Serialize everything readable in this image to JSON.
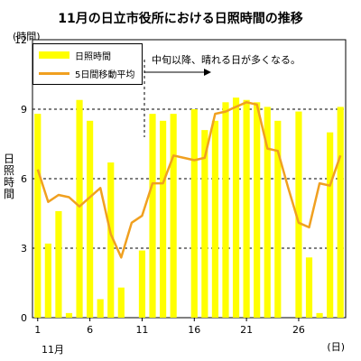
{
  "chart_data": {
    "type": "bar",
    "title": "11月の日立市役所における日照時間の推移",
    "y_unit": "(時間)",
    "x_unit": "(日)",
    "month_label": "11月",
    "ylabel": "日照時間",
    "ylim": [
      0,
      12
    ],
    "yticks": [
      0,
      3,
      6,
      9,
      12
    ],
    "xtick_labels": [
      "1",
      "6",
      "11",
      "16",
      "21",
      "26"
    ],
    "xtick_days": [
      1,
      6,
      11,
      16,
      21,
      26
    ],
    "x": [
      1,
      2,
      3,
      4,
      5,
      6,
      7,
      8,
      9,
      10,
      11,
      12,
      13,
      14,
      15,
      16,
      17,
      18,
      19,
      20,
      21,
      22,
      23,
      24,
      25,
      26,
      27,
      28,
      29,
      30
    ],
    "series": [
      {
        "name": "日照時間",
        "type": "bar",
        "color": "#ffff00",
        "values": [
          8.8,
          3.2,
          4.6,
          0.2,
          9.4,
          8.5,
          0.8,
          6.7,
          1.3,
          0.0,
          2.9,
          8.8,
          8.5,
          8.8,
          0.0,
          9.0,
          8.1,
          8.5,
          9.3,
          9.5,
          9.4,
          9.3,
          9.1,
          8.5,
          0.0,
          8.9,
          2.6,
          0.2,
          8.0,
          9.1
        ]
      },
      {
        "name": "5日間移動平均",
        "type": "line",
        "color": "#f0a020",
        "values": [
          6.4,
          5.0,
          5.3,
          5.2,
          4.8,
          5.2,
          5.6,
          3.6,
          2.6,
          4.1,
          4.4,
          5.8,
          5.8,
          7.0,
          6.9,
          6.8,
          6.9,
          8.8,
          8.9,
          9.1,
          9.3,
          9.2,
          7.3,
          7.2,
          5.6,
          4.1,
          3.9,
          5.8,
          5.7,
          7.0
        ]
      }
    ],
    "annotation": "中旬以降、晴れる日が多くなる。",
    "grid": "dashed horizontal",
    "legend_position": "top-left"
  }
}
